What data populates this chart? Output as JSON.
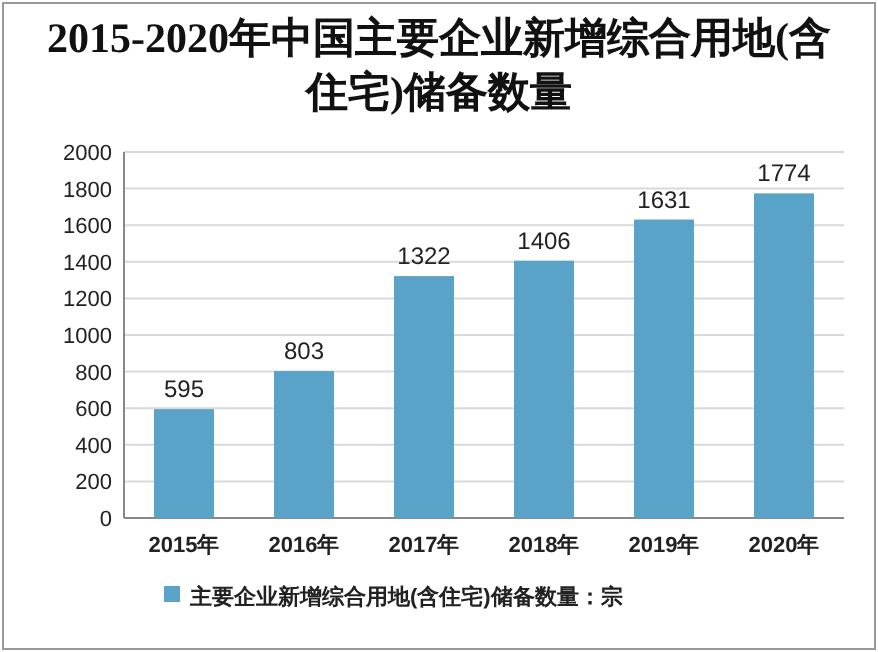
{
  "chart_data": {
    "type": "bar",
    "title": "2015-2020年中国主要企业新增综合用地(含住宅)储备数量",
    "categories": [
      "2015年",
      "2016年",
      "2017年",
      "2018年",
      "2019年",
      "2020年"
    ],
    "series": [
      {
        "name": "主要企业新增综合用地(含住宅)储备数量：宗",
        "color": "#5aa3c8",
        "values": [
          595,
          803,
          1322,
          1406,
          1631,
          1774
        ]
      }
    ],
    "ylim": [
      0,
      2000
    ],
    "yticks": [
      0,
      200,
      400,
      600,
      800,
      1000,
      1200,
      1400,
      1600,
      1800,
      2000
    ],
    "grid": "y",
    "legend": "bottom",
    "data_labels": true
  }
}
